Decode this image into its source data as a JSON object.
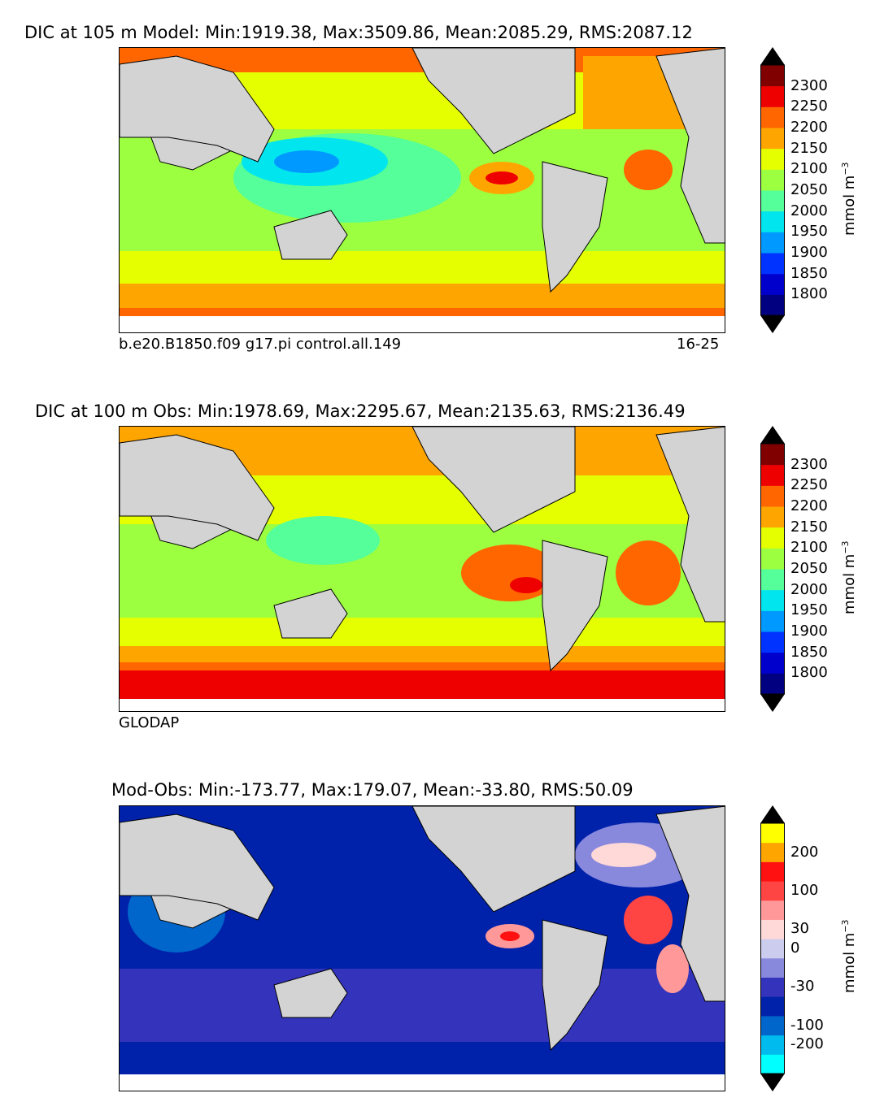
{
  "chart_data": [
    {
      "type": "heatmap",
      "title": "DIC at 105 m Model: Min:1919.38, Max:3509.86, Mean:2085.29, RMS:2087.12",
      "stats": {
        "min": 1919.38,
        "max": 3509.86,
        "mean": 2085.29,
        "rms": 2087.12
      },
      "depth_m": 105,
      "footer_left": "b.e20.B1850.f09 g17.pi control.all.149",
      "footer_right": "16-25",
      "colorbar": {
        "label": "mmol m$^{-3}$",
        "ticks": [
          "2300",
          "2250",
          "2200",
          "2150",
          "2100",
          "2050",
          "2000",
          "1950",
          "1900",
          "1850",
          "1800"
        ],
        "colors": [
          "#000080",
          "#0000cd",
          "#0033ff",
          "#0099ff",
          "#00e5ee",
          "#55ff99",
          "#9cff40",
          "#e5ff00",
          "#ffa500",
          "#ff6600",
          "#ee0000",
          "#800000"
        ]
      }
    },
    {
      "type": "heatmap",
      "title": "DIC at 100 m Obs: Min:1978.69, Max:2295.67, Mean:2135.63, RMS:2136.49",
      "stats": {
        "min": 1978.69,
        "max": 2295.67,
        "mean": 2135.63,
        "rms": 2136.49
      },
      "depth_m": 100,
      "footer_left": "GLODAP",
      "colorbar": {
        "label": "mmol m$^{-3}$",
        "ticks": [
          "2300",
          "2250",
          "2200",
          "2150",
          "2100",
          "2050",
          "2000",
          "1950",
          "1900",
          "1850",
          "1800"
        ],
        "colors": [
          "#000080",
          "#0000cd",
          "#0033ff",
          "#0099ff",
          "#00e5ee",
          "#55ff99",
          "#9cff40",
          "#e5ff00",
          "#ffa500",
          "#ff6600",
          "#ee0000",
          "#800000"
        ]
      }
    },
    {
      "type": "heatmap",
      "title": "Mod-Obs: Min:-173.77, Max:179.07, Mean:-33.80, RMS:50.09",
      "stats": {
        "min": -173.77,
        "max": 179.07,
        "mean": -33.8,
        "rms": 50.09
      },
      "colorbar": {
        "label": "mmol m$^{-3}$",
        "ticks": [
          "200",
          "100",
          "30",
          "0",
          "-30",
          "-100",
          "-200"
        ],
        "colors": [
          "#00ffff",
          "#00bbee",
          "#0066cc",
          "#0022aa",
          "#3333bb",
          "#8888dd",
          "#ccccee",
          "#ffd8d8",
          "#ff9999",
          "#ff4444",
          "#ff1111",
          "#ffa500",
          "#ffff00"
        ]
      }
    }
  ],
  "ui": {
    "colorbar_unit": "mmol m",
    "colorbar_unit_sup": "−3"
  }
}
